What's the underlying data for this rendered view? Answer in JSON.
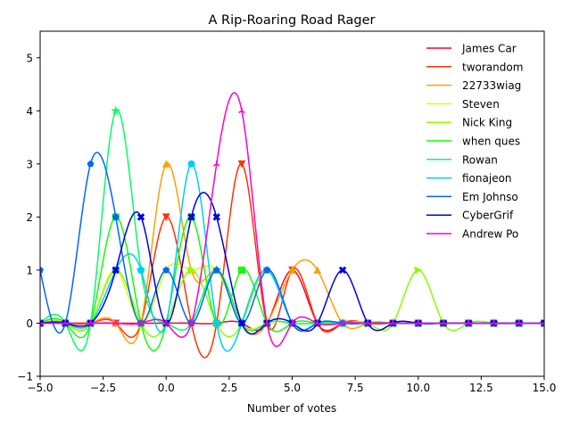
{
  "chart_data": {
    "type": "line",
    "title": "A Rip-Roaring Road Rager",
    "xlabel": "Number of votes",
    "ylabel": "",
    "xlim": [
      -5,
      15
    ],
    "ylim": [
      -1,
      5.5
    ],
    "xticks": [
      -5.0,
      -2.5,
      0.0,
      2.5,
      5.0,
      7.5,
      10.0,
      12.5,
      15.0
    ],
    "xtick_labels": [
      "−5.0",
      "−2.5",
      "0.0",
      "2.5",
      "5.0",
      "7.5",
      "10.0",
      "12.5",
      "15.0"
    ],
    "yticks": [
      -1,
      0,
      1,
      2,
      3,
      4,
      5
    ],
    "ytick_labels": [
      "−1",
      "0",
      "1",
      "2",
      "3",
      "4",
      "5"
    ],
    "grid": false,
    "legend_position": "top-right",
    "x": [
      -5,
      -4,
      -3,
      -2,
      -1,
      0,
      1,
      2,
      3,
      4,
      5,
      6,
      7,
      8,
      9,
      10,
      11,
      12,
      13,
      14,
      15
    ],
    "series": [
      {
        "name": "James Car",
        "color": "#ff0030",
        "marker": "none",
        "values": [
          0,
          0,
          0,
          0,
          0,
          0,
          0,
          0,
          0,
          0,
          1,
          0,
          0,
          0,
          0,
          0,
          0,
          0,
          0,
          0,
          0
        ]
      },
      {
        "name": "tworandom",
        "color": "#ff3300",
        "marker": "triangle-down",
        "values": [
          0,
          0,
          0,
          0,
          0,
          2,
          0,
          0,
          3,
          0,
          1,
          0,
          0,
          0,
          0,
          0,
          0,
          0,
          0,
          0,
          0
        ]
      },
      {
        "name": "22733wiag",
        "color": "#ffa000",
        "marker": "triangle-up",
        "values": [
          0,
          0,
          0,
          0,
          0,
          3,
          1,
          1,
          0,
          0,
          1,
          1,
          0,
          0,
          0,
          0,
          0,
          0,
          0,
          0,
          0
        ]
      },
      {
        "name": "Steven",
        "color": "#ddff00",
        "marker": "diamond",
        "values": [
          0,
          0,
          0,
          1,
          0,
          1,
          1,
          1,
          0,
          0,
          0,
          0,
          0,
          0,
          0,
          0,
          0,
          0,
          0,
          0,
          0
        ]
      },
      {
        "name": "Nick King",
        "color": "#88ff00",
        "marker": "triangle-right",
        "values": [
          0,
          0,
          0,
          1,
          0,
          0,
          1,
          0,
          0,
          1,
          0,
          0,
          0,
          0,
          0,
          1,
          0,
          0,
          0,
          0,
          0
        ]
      },
      {
        "name": "when ques",
        "color": "#11ff00",
        "marker": "square",
        "values": [
          0,
          0,
          0,
          2,
          0,
          0,
          2,
          0,
          1,
          0,
          0,
          0,
          0,
          0,
          0,
          0,
          0,
          0,
          0,
          0,
          0
        ]
      },
      {
        "name": "Rowan",
        "color": "#00ff66",
        "marker": "star",
        "values": [
          0,
          0,
          0,
          4,
          1,
          0,
          0,
          1,
          0,
          0,
          0,
          0,
          0,
          0,
          0,
          0,
          0,
          0,
          0,
          0,
          0
        ]
      },
      {
        "name": "fionajeon",
        "color": "#00ccff",
        "marker": "circle",
        "values": [
          0,
          0,
          0,
          1,
          1,
          0,
          3,
          0,
          0,
          1,
          0,
          0,
          0,
          0,
          0,
          0,
          0,
          0,
          0,
          0,
          0
        ]
      },
      {
        "name": "Em Johnso",
        "color": "#0066ff",
        "marker": "pentagon",
        "values": [
          1,
          0,
          3,
          2,
          0,
          1,
          0,
          1,
          0,
          1,
          0,
          0,
          0,
          0,
          0,
          0,
          0,
          0,
          0,
          0,
          0
        ]
      },
      {
        "name": "CyberGrif",
        "color": "#0000dd",
        "marker": "x",
        "values": [
          0,
          0,
          0,
          1,
          2,
          0,
          2,
          2,
          0,
          0,
          0,
          0,
          1,
          0,
          0,
          0,
          0,
          0,
          0,
          0,
          0
        ]
      },
      {
        "name": "Andrew Po",
        "color": "#ff00cc",
        "marker": "tri-up",
        "values": [
          0,
          0,
          0,
          0,
          0,
          0,
          0,
          3,
          4,
          0,
          0,
          0,
          0,
          0,
          0,
          0,
          0,
          0,
          0,
          0,
          0
        ]
      }
    ]
  }
}
